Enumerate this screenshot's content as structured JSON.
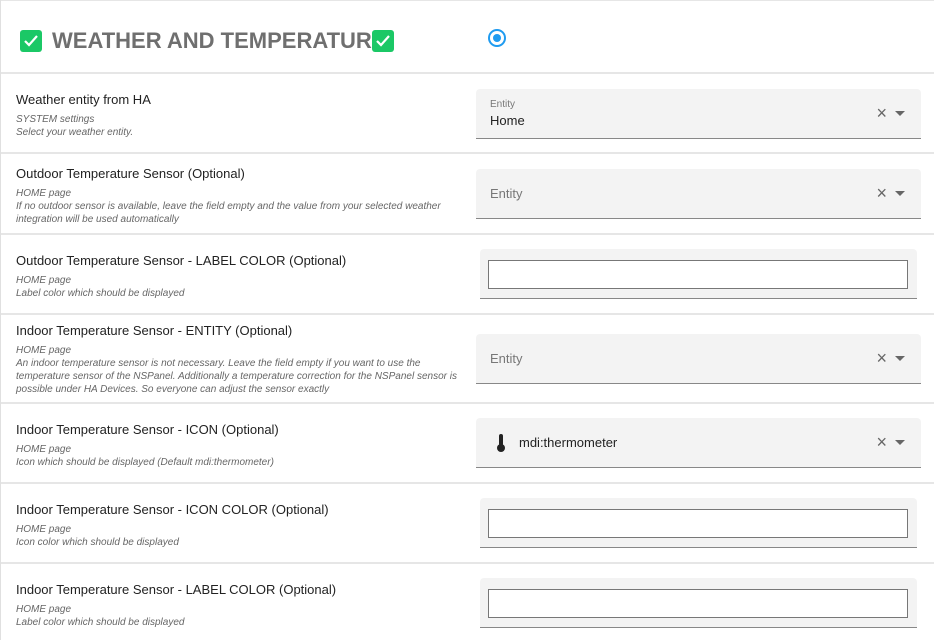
{
  "header": {
    "title": "WEATHER AND TEMPERATURE",
    "check_color": "#1bc866",
    "radio_color": "#1f9bf0",
    "radio_selected": true
  },
  "rows": [
    {
      "title": "Weather entity from HA",
      "desc1": "SYSTEM settings",
      "desc2": "Select your weather entity.",
      "field": {
        "type": "entity",
        "label": "Entity",
        "value": "Home"
      }
    },
    {
      "title": "Outdoor Temperature Sensor (Optional)",
      "desc1": "HOME page",
      "desc2": "If no outdoor sensor is available, leave the field empty and the value from your selected weather integration will be used automatically",
      "field": {
        "type": "entity",
        "placeholder": "Entity"
      }
    },
    {
      "title": "Outdoor Temperature Sensor - LABEL COLOR (Optional)",
      "desc1": "HOME page",
      "desc2": "Label color which should be displayed",
      "field": {
        "type": "color",
        "value": ""
      }
    },
    {
      "title": "Indoor Temperature Sensor - ENTITY (Optional)",
      "desc1": "HOME page",
      "desc2": "An indoor temperature sensor is not necessary. Leave the field empty if you want to use the temperature sensor of the NSPanel. Additionally a temperature correction for the NSPanel sensor is possible under HA Devices. So everyone can adjust the sensor exactly",
      "field": {
        "type": "entity",
        "placeholder": "Entity"
      }
    },
    {
      "title": "Indoor Temperature Sensor - ICON (Optional)",
      "desc1": "HOME page",
      "desc2": "Icon which should be displayed (Default mdi:thermometer)",
      "field": {
        "type": "icon",
        "value": "mdi:thermometer",
        "icon": "thermometer-icon"
      }
    },
    {
      "title": "Indoor Temperature Sensor - ICON COLOR (Optional)",
      "desc1": "HOME page",
      "desc2": "Icon color which should be displayed",
      "field": {
        "type": "color",
        "value": ""
      }
    },
    {
      "title": "Indoor Temperature Sensor - LABEL COLOR (Optional)",
      "desc1": "HOME page",
      "desc2": "Label color which should be displayed",
      "field": {
        "type": "color",
        "value": ""
      }
    }
  ],
  "icons": {
    "clear": "×"
  }
}
